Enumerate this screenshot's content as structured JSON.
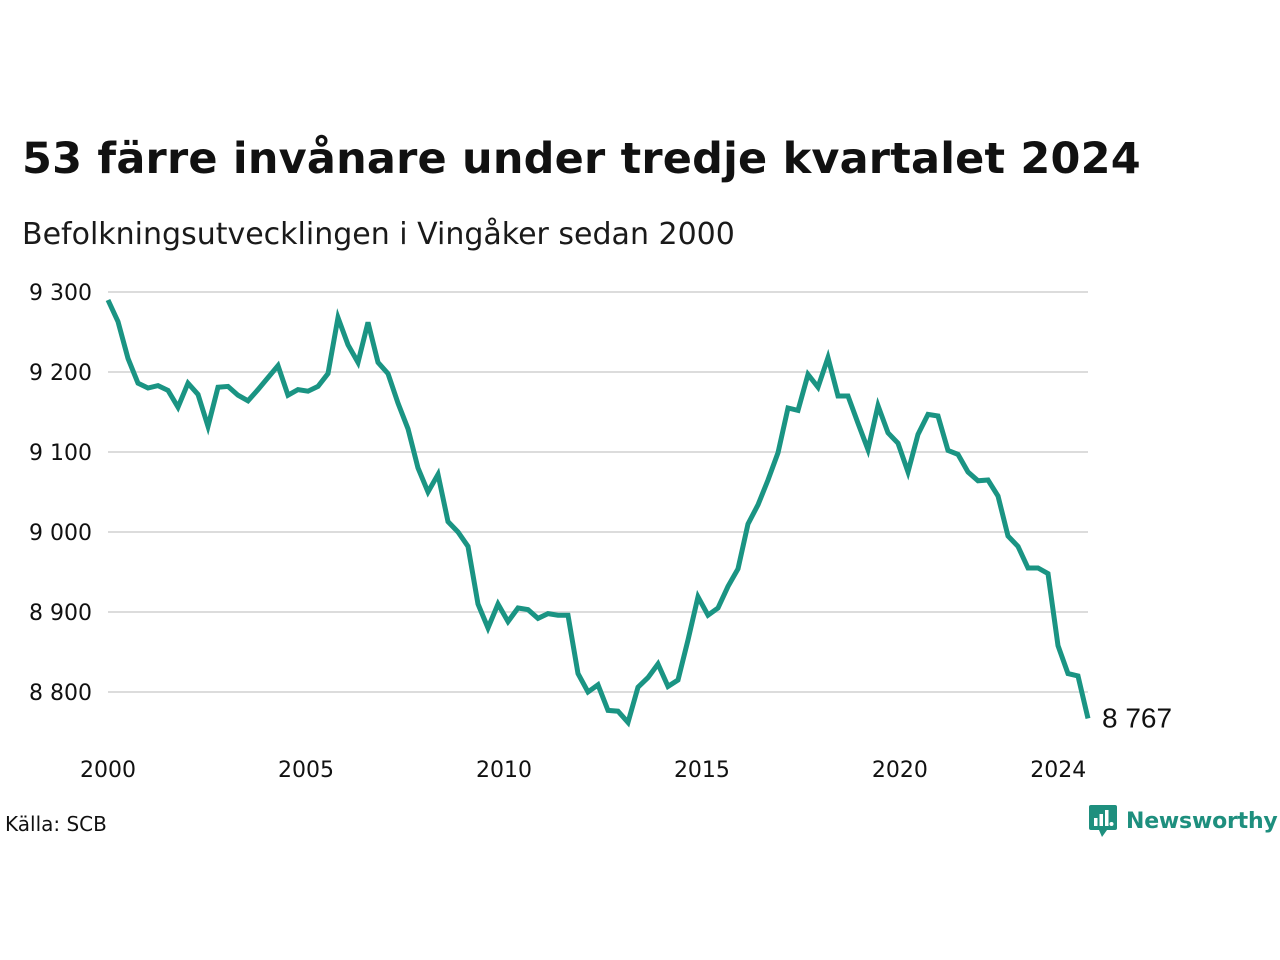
{
  "title": "53 färre invånare under tredje kvartalet 2024",
  "subtitle": "Befolkningsutvecklingen i Vingåker sedan 2000",
  "source": "Källa: SCB",
  "brand": "Newsworthy",
  "brand_icon": "newsworthy-logo-icon",
  "chart_data": {
    "type": "line",
    "title": "53 färre invånare under tredje kvartalet 2024",
    "subtitle": "Befolkningsutvecklingen i Vingåker sedan 2000",
    "xlabel": "",
    "ylabel": "",
    "xlim": [
      2000,
      2024.75
    ],
    "ylim": [
      8755,
      9300
    ],
    "yticks": [
      9300,
      9200,
      9100,
      9000,
      8900,
      8800
    ],
    "ytick_labels": [
      "9 300",
      "9 200",
      "9 100",
      "9 000",
      "8 900",
      "8 800"
    ],
    "xticks": [
      2000,
      2005,
      2010,
      2015,
      2020,
      2024
    ],
    "xtick_labels": [
      "2000",
      "2005",
      "2010",
      "2015",
      "2020",
      "2024"
    ],
    "grid": "horizontal",
    "legend": "none",
    "line_color": "#1a9483",
    "end_label": "8 767",
    "series": [
      {
        "values": [
          9290,
          9263,
          9217,
          9186,
          9180,
          9183,
          9177,
          9156,
          9186,
          9172,
          9132,
          9181,
          9182,
          9171,
          9164,
          9178,
          9193,
          9208,
          9171,
          9178,
          9176,
          9182,
          9198,
          9268,
          9234,
          9212,
          9262,
          9212,
          9198,
          9161,
          9129,
          9080,
          9050,
          9072,
          9013,
          9000,
          8982,
          8910,
          8880,
          8910,
          8888,
          8905,
          8903,
          8892,
          8898,
          8896,
          8896,
          8823,
          8800,
          8809,
          8777,
          8776,
          8762,
          8806,
          8818,
          8835,
          8807,
          8815,
          8865,
          8919,
          8896,
          8905,
          8932,
          8954,
          9010,
          9034,
          9065,
          9099,
          9155,
          9152,
          9197,
          9181,
          9218,
          9170,
          9170,
          9136,
          9103,
          9158,
          9124,
          9111,
          9075,
          9122,
          9147,
          9145,
          9102,
          9097,
          9075,
          9064,
          9065,
          9045,
          8995,
          8982,
          8955,
          8955,
          8948,
          8858,
          8823,
          8820,
          8767
        ]
      }
    ]
  }
}
